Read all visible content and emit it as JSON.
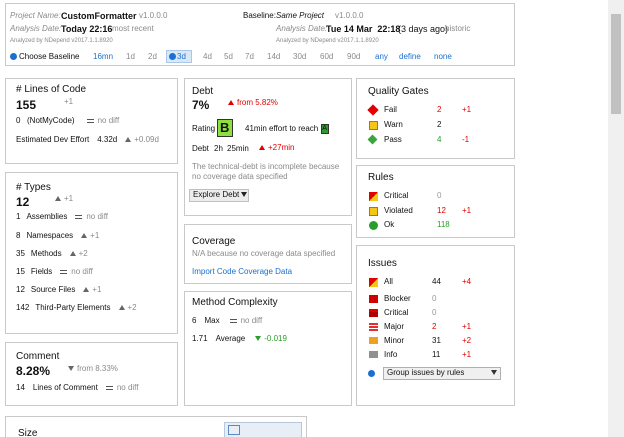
{
  "header": {
    "project_label": "Project Name:",
    "project_name": "CustomFormatter",
    "project_version": "v1.0.0.0",
    "date_label": "Analysis Date:",
    "date": "Today 22:16",
    "date_note": "most recent",
    "analyzed_by": "Analyzed by NDepend v2017.1.1.8920",
    "baseline_label": "Baseline:",
    "baseline_name": "Same Project",
    "baseline_version": "v1.0.0.0",
    "baseline_date_label": "Analysis Date:",
    "baseline_date": "Tue 14 Mar  22:18",
    "baseline_ago": "(3 days ago)",
    "baseline_note": "historic",
    "baseline_analyzed_by": "Analyzed by NDepend v2017.1.1.8920"
  },
  "baseline_chooser": {
    "label": "Choose Baseline",
    "selected": "3d",
    "options": [
      {
        "label": "16mn",
        "link": true
      },
      {
        "label": "1d",
        "link": false
      },
      {
        "label": "2d",
        "link": false
      },
      {
        "label": "3d",
        "link": true
      },
      {
        "label": "4d",
        "link": false
      },
      {
        "label": "5d",
        "link": false
      },
      {
        "label": "7d",
        "link": false
      },
      {
        "label": "14d",
        "link": false
      },
      {
        "label": "30d",
        "link": false
      },
      {
        "label": "60d",
        "link": false
      },
      {
        "label": "90d",
        "link": false
      },
      {
        "label": "any",
        "link": true
      },
      {
        "label": "define",
        "link": true
      },
      {
        "label": "none",
        "link": true
      }
    ]
  },
  "lines_of_code": {
    "title": "# Lines of Code",
    "value": "155",
    "delta": "+1",
    "notmycode_value": "0",
    "notmycode_label": "(NotMyCode)",
    "notmycode_diff": "no diff",
    "effort_label": "Estimated Dev Effort",
    "effort_value": "4.32d",
    "effort_delta": "+0.09d"
  },
  "types": {
    "title": "# Types",
    "value": "12",
    "delta": "+1",
    "rows": [
      {
        "value": "1",
        "label": "Assemblies",
        "diff": "no diff"
      },
      {
        "value": "8",
        "label": "Namespaces",
        "diff": "+1"
      },
      {
        "value": "35",
        "label": "Methods",
        "diff": "+2"
      },
      {
        "value": "15",
        "label": "Fields",
        "diff": "no diff"
      },
      {
        "value": "12",
        "label": "Source Files",
        "diff": "+1"
      },
      {
        "value": "142",
        "label": "Third-Party Elements",
        "diff": "+2"
      }
    ]
  },
  "comment": {
    "title": "Comment",
    "value": "8.28%",
    "delta": "from 8.33%",
    "lines_value": "14",
    "lines_label": "Lines of Comment",
    "lines_diff": "no diff"
  },
  "size": {
    "title": "Size"
  },
  "debt": {
    "title": "Debt",
    "value": "7%",
    "delta": "from 5.82%",
    "rating_label": "Rating",
    "rating": "B",
    "effort_text": "41min effort to reach",
    "target_rating": "A",
    "debt_label": "Debt",
    "debt_hours": "2h",
    "debt_minutes": "25min",
    "debt_delta": "+27min",
    "note": "The technical-debt is incomplete because no coverage data specified",
    "button": "Explore Debt"
  },
  "coverage": {
    "title": "Coverage",
    "note": "N/A because no coverage data specified",
    "link": "Import Code Coverage Data"
  },
  "method_complexity": {
    "title": "Method Complexity",
    "rows": [
      {
        "value": "6",
        "label": "Max",
        "diff": "no diff"
      },
      {
        "value": "1.71",
        "label": "Average",
        "diff": "-0.019"
      }
    ]
  },
  "quality_gates": {
    "title": "Quality Gates",
    "rows": [
      {
        "label": "Fail",
        "value": "2",
        "diff": "+1",
        "color": "#e00000"
      },
      {
        "label": "Warn",
        "value": "2",
        "color": "#111111"
      },
      {
        "label": "Pass",
        "value": "4",
        "diff": "-1",
        "color": "#2a9d2a"
      }
    ]
  },
  "rules": {
    "title": "Rules",
    "rows": [
      {
        "label": "Critical",
        "value": "0",
        "color": "#999999"
      },
      {
        "label": "Violated",
        "value": "12",
        "diff": "+1",
        "color": "#e00000"
      },
      {
        "label": "Ok",
        "value": "118",
        "color": "#2a9d2a"
      }
    ]
  },
  "issues": {
    "title": "Issues",
    "group_by": "Group issues by rules",
    "rows": [
      {
        "label": "All",
        "value": "44",
        "diff": "+4",
        "color": "#111111"
      },
      {
        "label": "Blocker",
        "value": "0",
        "color": "#999999"
      },
      {
        "label": "Critical",
        "value": "0",
        "color": "#999999"
      },
      {
        "label": "Major",
        "value": "2",
        "diff": "+1",
        "color": "#e00000"
      },
      {
        "label": "Minor",
        "value": "31",
        "diff": "+2",
        "color": "#111111"
      },
      {
        "label": "Info",
        "value": "11",
        "diff": "+1",
        "color": "#111111"
      }
    ]
  }
}
